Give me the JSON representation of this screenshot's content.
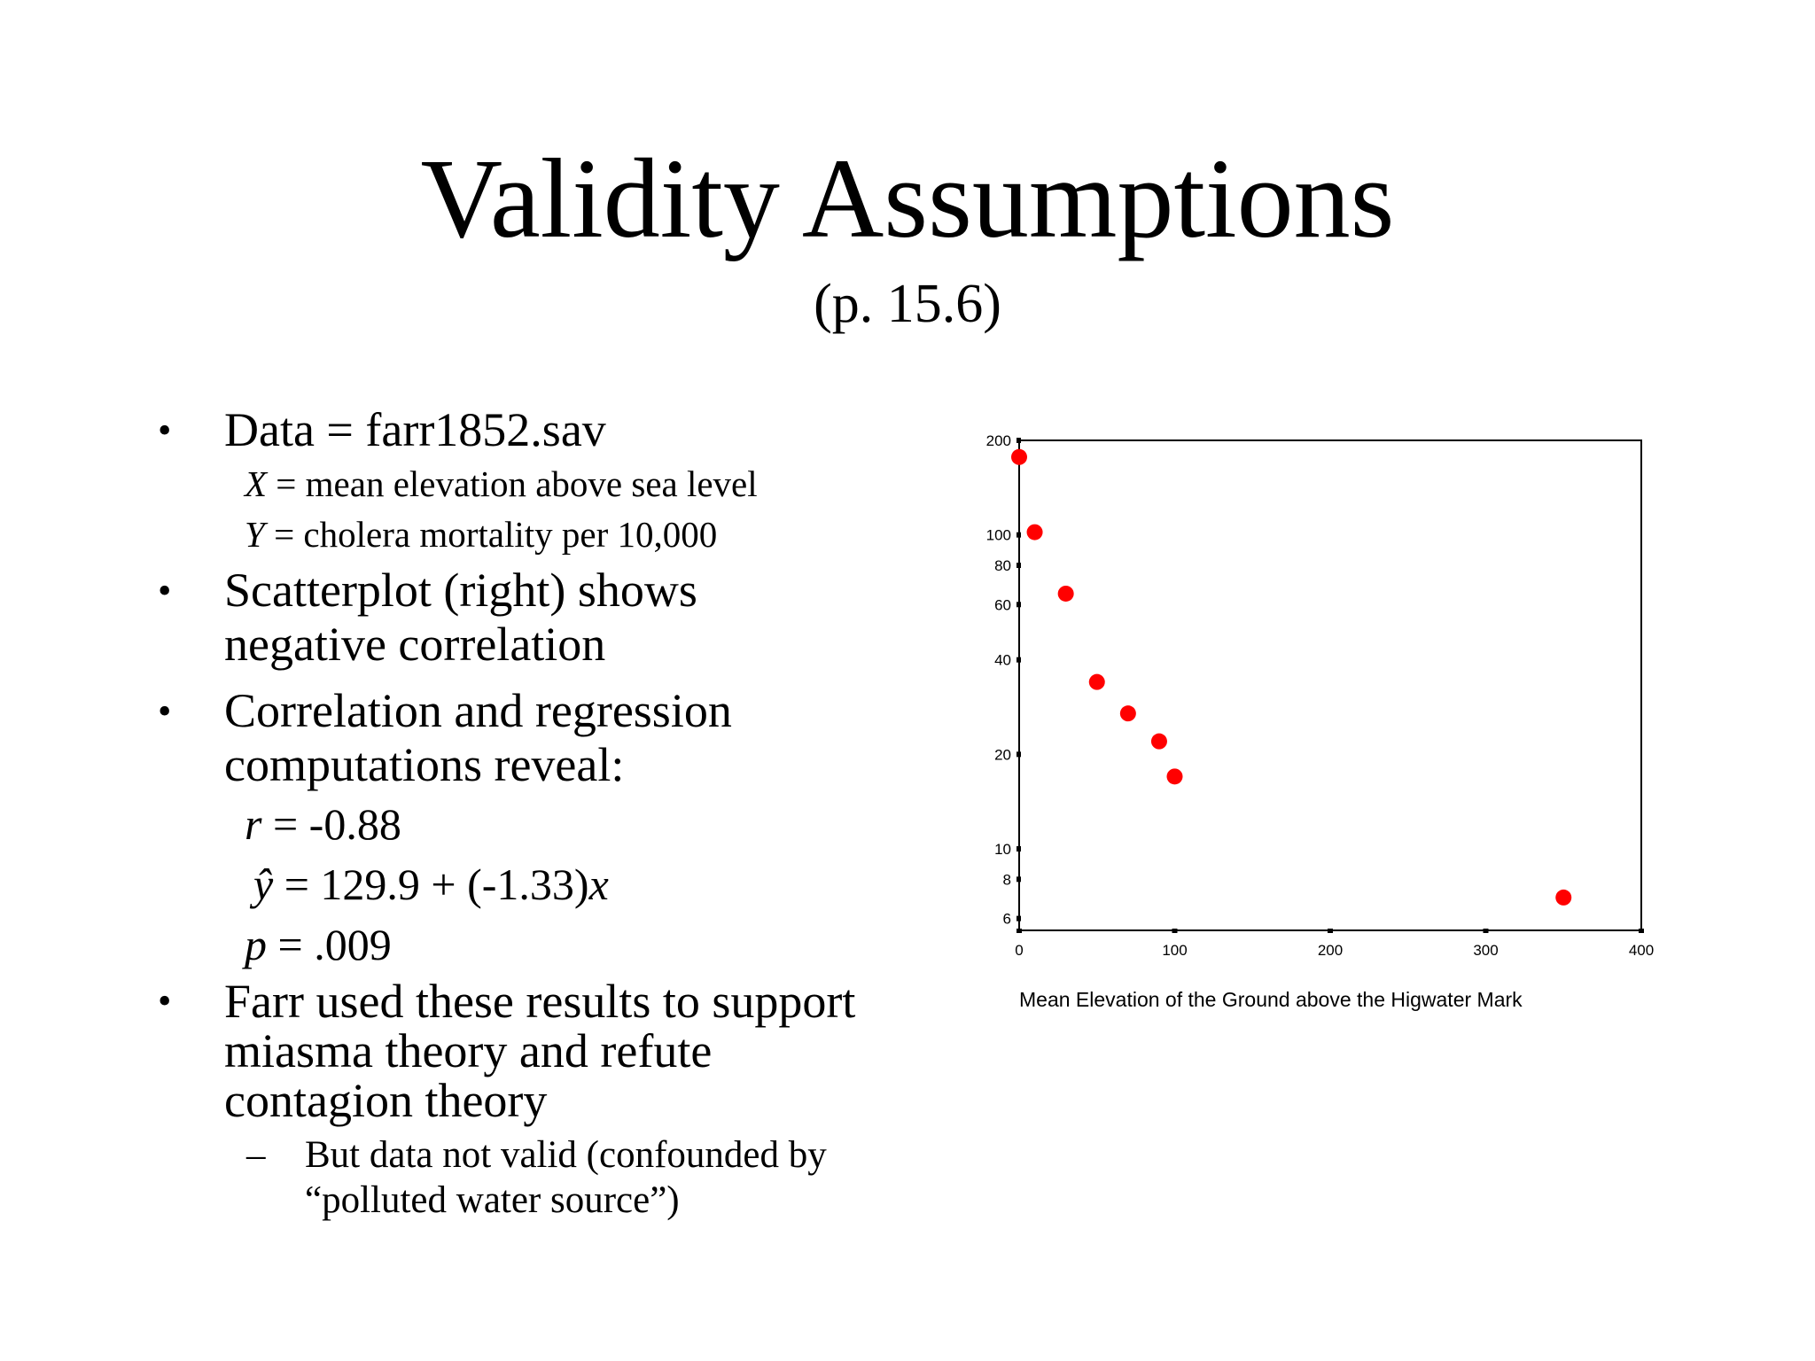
{
  "slide": {
    "title": "Validity Assumptions",
    "subtitle": "(p. 15.6)"
  },
  "bullets": {
    "b1": "Data = farr1852.sav",
    "b1_x_var": "X",
    "b1_x_desc": " = mean elevation above sea level",
    "b1_y_var": "Y",
    "b1_y_desc": " = cholera mortality per 10,000",
    "b2_line1": "Scatterplot (right) shows",
    "b2_line2": "negative correlation",
    "b3_line1": "Correlation and regression",
    "b3_line2": "computations reveal:",
    "r_var": "r",
    "r_val": " = -0.88",
    "yhat_var": "ŷ",
    "yhat_eq": " = 129.9 + (-1.33)",
    "yhat_x": "x",
    "p_var": "p",
    "p_val": " = .009",
    "b4_line1": "Farr used these results to support",
    "b4_line2": "miasma theory and refute",
    "b4_line3": "contagion theory",
    "sub_line1": "But data not valid (confounded by",
    "sub_line2": "“polluted water source”)",
    "bullet_glyph": "•",
    "dash_glyph": "–"
  },
  "chart_data": {
    "type": "scatter",
    "xlabel": "Mean Elevation of the Ground above the Higwater Mark",
    "ylabel": "",
    "xlim": [
      0,
      400
    ],
    "ylim": [
      5.5,
      200
    ],
    "y_scale": "log",
    "grid": false,
    "marker_color": "#ff0000",
    "x_ticks": [
      0,
      100,
      200,
      300,
      400
    ],
    "y_ticks": [
      6,
      8,
      10,
      20,
      40,
      60,
      80,
      100,
      200
    ],
    "points": [
      {
        "x": 0,
        "y": 177
      },
      {
        "x": 10,
        "y": 102
      },
      {
        "x": 30,
        "y": 65
      },
      {
        "x": 50,
        "y": 34
      },
      {
        "x": 70,
        "y": 27
      },
      {
        "x": 90,
        "y": 22
      },
      {
        "x": 100,
        "y": 17
      },
      {
        "x": 350,
        "y": 7
      }
    ]
  }
}
